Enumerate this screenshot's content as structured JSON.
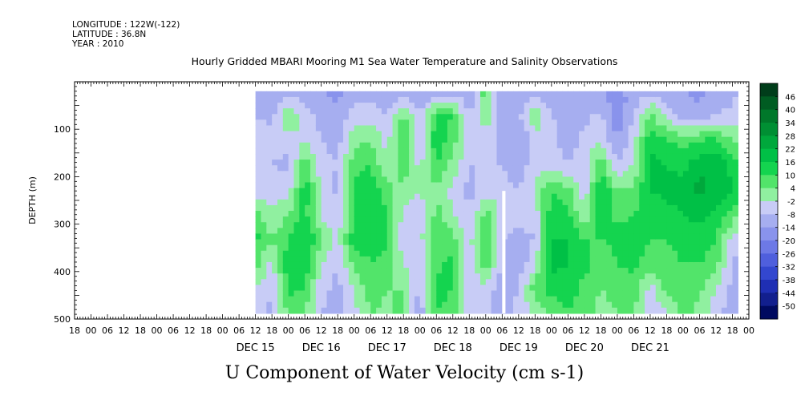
{
  "header": {
    "longitude": "LONGITUDE : 122W(-122)",
    "latitude": "LATITUDE : 36.8N",
    "year": "YEAR : 2010"
  },
  "chart_data": {
    "type": "heatmap",
    "title": "Hourly Gridded MBARI Mooring M1 Sea Water Temperature and Salinity Observations",
    "xlabel": "U Component of Water Velocity (cm s-1)",
    "ylabel": "DEPTH (m)",
    "ylim": [
      500,
      0
    ],
    "y_ticks": [
      100,
      200,
      300,
      400,
      500
    ],
    "x_days": [
      "DEC 15",
      "DEC 16",
      "DEC 17",
      "DEC 18",
      "DEC 19",
      "DEC 20",
      "DEC 21"
    ],
    "x_hour_ticks": [
      "00",
      "06",
      "12",
      "18"
    ],
    "x_range_hours": [
      -54,
      192
    ],
    "data_start_hour": 12,
    "data_end_hour": 188,
    "data_depth_range": [
      20,
      488
    ],
    "gap_hour": 102,
    "colorbar": {
      "levels": [
        46,
        40,
        34,
        28,
        22,
        16,
        10,
        4,
        -2,
        -8,
        -14,
        -20,
        -26,
        -32,
        -38,
        -44,
        -50
      ],
      "colors": [
        "#003d1a",
        "#005c22",
        "#00782a",
        "#008f33",
        "#00a83c",
        "#00c046",
        "#14d44f",
        "#52e46a",
        "#90f0a0",
        "#c8ccf6",
        "#a6aef0",
        "#8993ec",
        "#6d79e6",
        "#4f5fdd",
        "#3347cf",
        "#1f2fb4",
        "#121f8e",
        "#000a60"
      ]
    },
    "columns": [
      {
        "t": 12,
        "v": [
          -12,
          -8,
          -4,
          -6,
          -8,
          8,
          12,
          6,
          -2,
          -6
        ]
      },
      {
        "t": 18,
        "v": [
          -14,
          -10,
          -6,
          -8,
          -4,
          -2,
          4,
          -4,
          -8,
          -10
        ]
      },
      {
        "t": 24,
        "v": [
          -12,
          6,
          -6,
          -10,
          -4,
          4,
          10,
          14,
          12,
          6
        ]
      },
      {
        "t": 30,
        "v": [
          -10,
          -6,
          -2,
          8,
          14,
          12,
          16,
          14,
          10,
          4
        ]
      },
      {
        "t": 36,
        "v": [
          -14,
          -10,
          -8,
          -6,
          -2,
          -4,
          6,
          -2,
          -6,
          -8
        ]
      },
      {
        "t": 42,
        "v": [
          -16,
          -12,
          -10,
          -8,
          -10,
          -6,
          -4,
          -8,
          -10,
          -12
        ]
      },
      {
        "t": 48,
        "v": [
          -10,
          -6,
          2,
          8,
          12,
          10,
          14,
          6,
          -2,
          -4
        ]
      },
      {
        "t": 54,
        "v": [
          -12,
          -4,
          4,
          10,
          14,
          16,
          12,
          10,
          8,
          4
        ]
      },
      {
        "t": 60,
        "v": [
          -14,
          -8,
          -4,
          -2,
          6,
          10,
          12,
          8,
          4,
          2
        ]
      },
      {
        "t": 66,
        "v": [
          -12,
          6,
          10,
          8,
          2,
          -4,
          -6,
          -2,
          4,
          6
        ]
      },
      {
        "t": 72,
        "v": [
          -14,
          -8,
          -6,
          -4,
          -2,
          -6,
          -4,
          -8,
          -10,
          -12
        ]
      },
      {
        "t": 78,
        "v": [
          -16,
          12,
          14,
          10,
          4,
          6,
          10,
          8,
          12,
          10
        ]
      },
      {
        "t": 84,
        "v": [
          -10,
          10,
          6,
          2,
          -4,
          -2,
          6,
          12,
          10,
          8
        ]
      },
      {
        "t": 90,
        "v": [
          -12,
          -10,
          -6,
          -8,
          -10,
          -8,
          -4,
          -6,
          -8,
          -6
        ]
      },
      {
        "t": 96,
        "v": [
          8,
          4,
          -6,
          -8,
          -4,
          6,
          10,
          8,
          -4,
          -8
        ]
      },
      {
        "t": 102,
        "v": [
          -14,
          -12,
          -10,
          -8,
          -6,
          -4,
          -8,
          -10,
          -12,
          -10
        ]
      },
      {
        "t": 108,
        "v": [
          -12,
          -10,
          -14,
          -12,
          -8,
          -6,
          -10,
          -12,
          -8,
          -6
        ]
      },
      {
        "t": 114,
        "v": [
          -10,
          4,
          -6,
          -4,
          -2,
          -6,
          -8,
          -4,
          8,
          -2
        ]
      },
      {
        "t": 120,
        "v": [
          -14,
          -8,
          -6,
          -4,
          10,
          14,
          16,
          18,
          12,
          6
        ]
      },
      {
        "t": 126,
        "v": [
          -12,
          -10,
          -12,
          -8,
          6,
          12,
          16,
          16,
          14,
          10
        ]
      },
      {
        "t": 132,
        "v": [
          -12,
          -10,
          -6,
          -4,
          -6,
          -2,
          10,
          12,
          8,
          6
        ]
      },
      {
        "t": 138,
        "v": [
          -14,
          -6,
          -2,
          8,
          16,
          14,
          10,
          6,
          4,
          2
        ]
      },
      {
        "t": 144,
        "v": [
          -16,
          -20,
          -14,
          -8,
          4,
          8,
          12,
          10,
          6,
          4
        ]
      },
      {
        "t": 150,
        "v": [
          -12,
          -8,
          -4,
          -2,
          6,
          10,
          14,
          12,
          8,
          4
        ]
      },
      {
        "t": 156,
        "v": [
          -10,
          6,
          14,
          18,
          16,
          12,
          10,
          6,
          -4,
          -8
        ]
      },
      {
        "t": 162,
        "v": [
          -12,
          -4,
          10,
          16,
          18,
          14,
          10,
          8,
          6,
          -4
        ]
      },
      {
        "t": 168,
        "v": [
          -14,
          -10,
          8,
          14,
          18,
          16,
          12,
          10,
          8,
          6
        ]
      },
      {
        "t": 174,
        "v": [
          -16,
          -12,
          10,
          20,
          24,
          18,
          14,
          10,
          6,
          2
        ]
      },
      {
        "t": 180,
        "v": [
          -12,
          -8,
          12,
          22,
          20,
          14,
          10,
          6,
          -2,
          -6
        ]
      },
      {
        "t": 186,
        "v": [
          -10,
          -6,
          4,
          14,
          16,
          8,
          -4,
          -8,
          -10,
          -12
        ]
      },
      {
        "t": 188,
        "v": [
          -8,
          -6,
          2,
          10,
          12,
          4,
          -6,
          -10,
          -12,
          -14
        ]
      }
    ]
  }
}
